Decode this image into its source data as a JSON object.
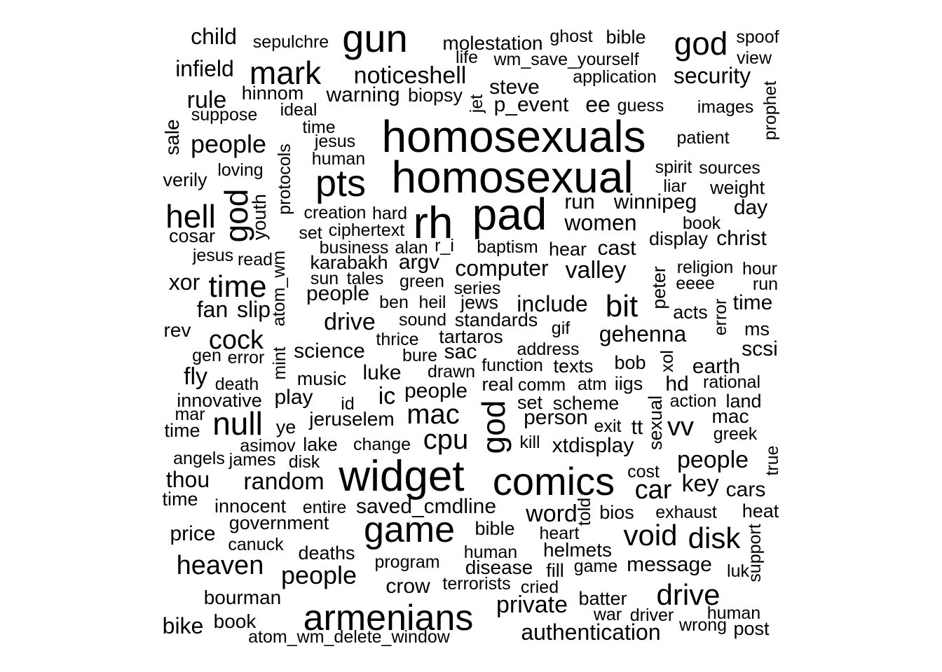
{
  "word_cloud": {
    "text_color": "#000000",
    "background": "#ffffff",
    "words": [
      "homosexuals",
      "homosexual",
      "pad",
      "rh",
      "widget",
      "comics",
      "armenians",
      "gun",
      "pts",
      "game",
      "god",
      "god",
      "god",
      "mark",
      "hell",
      "time",
      "null",
      "drive",
      "mac",
      "cpu",
      "disk",
      "void",
      "bit",
      "car",
      "heaven",
      "cock",
      "people",
      "people",
      "people",
      "people",
      "valley",
      "include",
      "computer",
      "random",
      "noticeshell",
      "security",
      "child",
      "infield",
      "rule",
      "sepulchre",
      "molestation",
      "ghost",
      "bible",
      "spoof",
      "view",
      "life",
      "wm_save_yourself",
      "application",
      "steve",
      "p_event",
      "ee",
      "guess",
      "images",
      "prophet",
      "biopsy",
      "jet",
      "warning",
      "hinnom",
      "ideal",
      "suppose",
      "sale",
      "time",
      "jesus",
      "human",
      "patient",
      "protocols",
      "loving",
      "verily",
      "spirit",
      "sources",
      "liar",
      "weight",
      "winnipeg",
      "run",
      "day",
      "youth",
      "creation",
      "hard",
      "women",
      "book",
      "christ",
      "cosar",
      "set",
      "ciphertext",
      "display",
      "business",
      "alan",
      "r_i",
      "baptism",
      "hear",
      "cast",
      "jesus",
      "read",
      "karabakh",
      "argv",
      "atom_wm",
      "religion",
      "hour",
      "xor",
      "sun",
      "tales",
      "green",
      "peter",
      "eeee",
      "run",
      "series",
      "ben",
      "heil",
      "jews",
      "acts",
      "error",
      "time",
      "fan",
      "slip",
      "rev",
      "sound",
      "standards",
      "gehenna",
      "gif",
      "ms",
      "thrice",
      "tartaros",
      "scsi",
      "gen",
      "error",
      "mint",
      "science",
      "bure",
      "sac",
      "address",
      "bob",
      "xol",
      "earth",
      "fly",
      "death",
      "music",
      "luke",
      "drawn",
      "function",
      "texts",
      "rational",
      "innovative",
      "play",
      "id",
      "ic",
      "real",
      "comm",
      "atm",
      "iigs",
      "hd",
      "mar",
      "action",
      "land",
      "jeruselem",
      "set",
      "scheme",
      "sexual",
      "vv",
      "time",
      "ye",
      "person",
      "exit",
      "tt",
      "greek",
      "asimov",
      "lake",
      "change",
      "kill",
      "xtdisplay",
      "angels",
      "james",
      "disk",
      "true",
      "cost",
      "thou",
      "key",
      "cars",
      "time",
      "told",
      "bios",
      "exhaust",
      "heat",
      "innocent",
      "entire",
      "saved_cmdline",
      "word",
      "heart",
      "government",
      "bible",
      "price",
      "support",
      "canuck",
      "human",
      "helmets",
      "deaths",
      "program",
      "game",
      "message",
      "luk",
      "disease",
      "fill",
      "crow",
      "terrorists",
      "cried",
      "bourman",
      "private",
      "batter",
      "war",
      "driver",
      "human",
      "bike",
      "book",
      "wrong",
      "post",
      "authentication",
      "atom_wm_delete_window"
    ]
  }
}
